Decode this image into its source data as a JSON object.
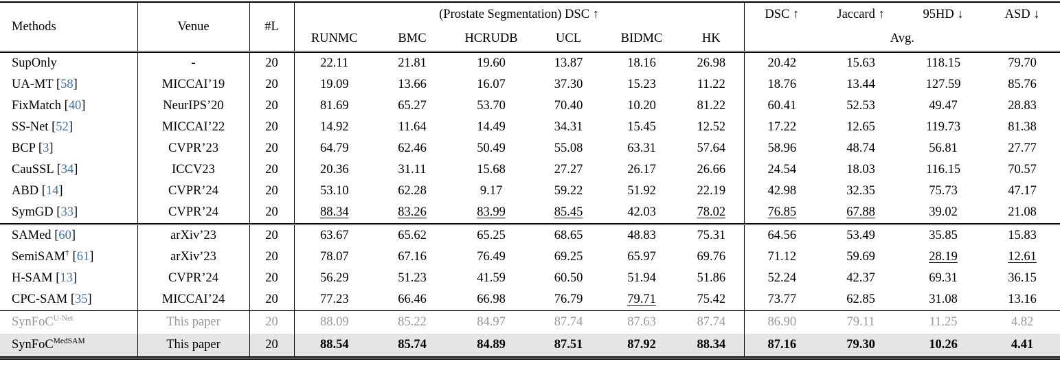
{
  "colors": {
    "citation_blue": "#3c71a6",
    "gray_row_text": "#979797",
    "highlight_row_bg": "#e5e5e5",
    "rule_color": "#000000"
  },
  "table": {
    "header": {
      "methods": "Methods",
      "venue": "Venue",
      "labeled_count": "#L",
      "prostate_group": "(Prostate Segmentation) DSC ↑",
      "site_columns": [
        "RUNMC",
        "BMC",
        "HCRUDB",
        "UCL",
        "BIDMC",
        "HK"
      ],
      "avg_columns": [
        "DSC ↑",
        "Jaccard ↑",
        "95HD ↓",
        "ASD ↓"
      ],
      "avg_group": "Avg."
    },
    "sections": [
      {
        "name": "semi-supervised-baselines",
        "rows": [
          {
            "method": "SupOnly",
            "cite": "",
            "sup": "",
            "venue": "-",
            "labeled": "20",
            "values": [
              "22.11",
              "21.81",
              "19.60",
              "13.87",
              "18.16",
              "26.98",
              "20.42",
              "15.63",
              "118.15",
              "79.70"
            ],
            "underline": []
          },
          {
            "method": "UA-MT",
            "cite": "58",
            "sup": "",
            "venue": "MICCAI’19",
            "labeled": "20",
            "values": [
              "19.09",
              "13.66",
              "16.07",
              "37.30",
              "15.23",
              "11.22",
              "18.76",
              "13.44",
              "127.59",
              "85.76"
            ],
            "underline": []
          },
          {
            "method": "FixMatch",
            "cite": "40",
            "sup": "",
            "venue": "NeurIPS’20",
            "labeled": "20",
            "values": [
              "81.69",
              "65.27",
              "53.70",
              "70.40",
              "10.20",
              "81.22",
              "60.41",
              "52.53",
              "49.47",
              "28.83"
            ],
            "underline": []
          },
          {
            "method": "SS-Net",
            "cite": "52",
            "sup": "",
            "venue": "MICCAI’22",
            "labeled": "20",
            "values": [
              "14.92",
              "11.64",
              "14.49",
              "34.31",
              "15.45",
              "12.52",
              "17.22",
              "12.65",
              "119.73",
              "81.38"
            ],
            "underline": []
          },
          {
            "method": "BCP",
            "cite": "3",
            "sup": "",
            "venue": "CVPR’23",
            "labeled": "20",
            "values": [
              "64.79",
              "62.46",
              "50.49",
              "55.08",
              "63.31",
              "57.64",
              "58.96",
              "48.74",
              "56.81",
              "27.77"
            ],
            "underline": []
          },
          {
            "method": "CauSSL",
            "cite": "34",
            "sup": "",
            "venue": "ICCV23",
            "labeled": "20",
            "values": [
              "20.36",
              "31.11",
              "15.68",
              "27.27",
              "26.17",
              "26.66",
              "24.54",
              "18.03",
              "116.15",
              "70.57"
            ],
            "underline": []
          },
          {
            "method": "ABD",
            "cite": "14",
            "sup": "",
            "venue": "CVPR’24",
            "labeled": "20",
            "values": [
              "53.10",
              "62.28",
              "9.17",
              "59.22",
              "51.92",
              "22.19",
              "42.98",
              "32.35",
              "75.73",
              "47.17"
            ],
            "underline": []
          },
          {
            "method": "SymGD",
            "cite": "33",
            "sup": "",
            "venue": "CVPR’24",
            "labeled": "20",
            "values": [
              "88.34",
              "83.26",
              "83.99",
              "85.45",
              "42.03",
              "78.02",
              "76.85",
              "67.88",
              "39.02",
              "21.08"
            ],
            "underline": [
              0,
              1,
              2,
              3,
              5,
              6,
              7
            ]
          }
        ]
      },
      {
        "name": "sam-based-methods",
        "rows": [
          {
            "method": "SAMed",
            "cite": "60",
            "sup": "",
            "venue": "arXiv’23",
            "labeled": "20",
            "values": [
              "63.67",
              "65.62",
              "65.25",
              "68.65",
              "48.83",
              "75.31",
              "64.56",
              "53.49",
              "35.85",
              "15.83"
            ],
            "underline": []
          },
          {
            "method": "SemiSAM",
            "cite": "61",
            "sup": "†",
            "venue": "arXiv’23",
            "labeled": "20",
            "values": [
              "78.07",
              "67.16",
              "76.49",
              "69.25",
              "65.97",
              "69.76",
              "71.12",
              "59.69",
              "28.19",
              "12.61"
            ],
            "underline": [
              8,
              9
            ]
          },
          {
            "method": "H-SAM",
            "cite": "13",
            "sup": "",
            "venue": "CVPR’24",
            "labeled": "20",
            "values": [
              "56.29",
              "51.23",
              "41.59",
              "60.50",
              "51.94",
              "51.86",
              "52.24",
              "42.37",
              "69.31",
              "36.15"
            ],
            "underline": []
          },
          {
            "method": "CPC-SAM",
            "cite": "35",
            "sup": "",
            "venue": "MICCAI’24",
            "labeled": "20",
            "values": [
              "77.23",
              "66.46",
              "66.98",
              "76.79",
              "79.71",
              "75.42",
              "73.77",
              "62.85",
              "31.08",
              "13.16"
            ],
            "underline": [
              4
            ]
          }
        ]
      },
      {
        "name": "ours",
        "rows": [
          {
            "method": "SynFoC",
            "cite": "",
            "sup": "U-Net",
            "venue": "This paper",
            "labeled": "20",
            "values": [
              "88.09",
              "85.22",
              "84.97",
              "87.74",
              "87.63",
              "87.74",
              "86.90",
              "79.11",
              "11.25",
              "4.82"
            ],
            "underline": [],
            "style": "gray"
          },
          {
            "method": "SynFoC",
            "cite": "",
            "sup": "MedSAM",
            "venue": "This paper",
            "labeled": "20",
            "values": [
              "88.54",
              "85.74",
              "84.89",
              "87.51",
              "87.92",
              "88.34",
              "87.16",
              "79.30",
              "10.26",
              "4.41"
            ],
            "underline": [],
            "style": "hl",
            "bold": true
          }
        ]
      }
    ]
  }
}
